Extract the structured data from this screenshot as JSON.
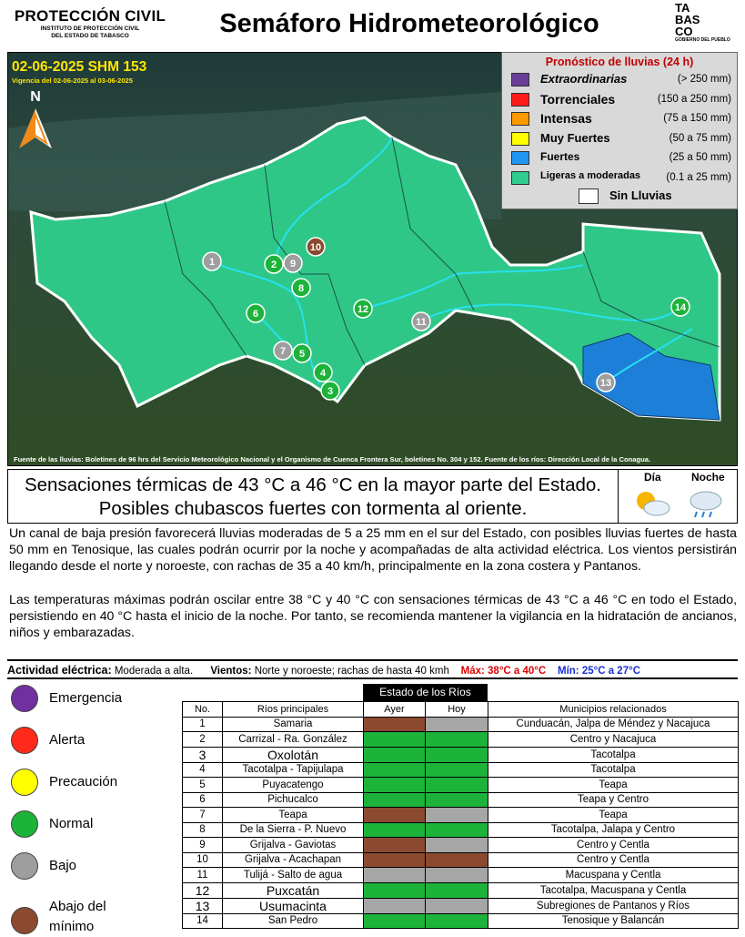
{
  "header": {
    "org_title": "PROTECCIÓN CIVIL",
    "org_sub1": "INSTITUTO DE PROTECCIÓN CIVIL",
    "org_sub2": "DEL ESTADO DE TABASCO",
    "title": "Semáforo Hidrometeorológico",
    "logo": [
      "TA",
      "BAS",
      "CO",
      "GOBIERNO DEL PUEBLO"
    ]
  },
  "map": {
    "bulletin": "02-06-2025 SHM 153",
    "validity": "Vigencia del 02-06-2025 al 03-06-2025",
    "north": "N",
    "source": "Fuente de las lluvias: Boletines de 96 hrs del Servicio Meteorológico Nacional y el Organismo de Cuenca Frontera Sur, boletines No. 304 y 152. Fuente de los ríos: Dirección Local de la Conagua.",
    "markers": [
      {
        "label": "1",
        "color": "#9e9e9e"
      },
      {
        "label": "2",
        "color": "#1db33a"
      },
      {
        "label": "3",
        "color": "#1db33a"
      },
      {
        "label": "4",
        "color": "#1db33a"
      },
      {
        "label": "5",
        "color": "#1db33a"
      },
      {
        "label": "6",
        "color": "#1db33a"
      },
      {
        "label": "7",
        "color": "#9e9e9e"
      },
      {
        "label": "8",
        "color": "#1db33a"
      },
      {
        "label": "9",
        "color": "#9e9e9e"
      },
      {
        "label": "10",
        "color": "#8b4a2f"
      },
      {
        "label": "11",
        "color": "#9e9e9e"
      },
      {
        "label": "12",
        "color": "#1db33a"
      },
      {
        "label": "13",
        "color": "#9e9e9e"
      },
      {
        "label": "14",
        "color": "#1db33a"
      }
    ]
  },
  "legend": {
    "title": "Pronóstico de lluvias (24 h)",
    "items": [
      {
        "name": "Extraordinarias",
        "range": "(> 250 mm)",
        "color": "#6a3d9a"
      },
      {
        "name": "Torrenciales",
        "range": "(150 a 250 mm)",
        "color": "#ff1a1a"
      },
      {
        "name": "Intensas",
        "range": "(75 a 150 mm)",
        "color": "#ff9900"
      },
      {
        "name": "Muy Fuertes",
        "range": "(50 a 75 mm)",
        "color": "#ffff00"
      },
      {
        "name": "Fuertes",
        "range": "(25 a 50 mm)",
        "color": "#2196f3"
      },
      {
        "name": "Ligeras a moderadas",
        "range": "(0.1 a 25 mm)",
        "color": "#2ecc8f"
      }
    ],
    "none": {
      "name": "Sin Lluvias",
      "color": "#ffffff"
    }
  },
  "summary": {
    "headline": "Sensaciones térmicas de 43 °C a 46 °C en la mayor parte del Estado. Posibles chubascos fuertes con tormenta al oriente.",
    "day": "Día",
    "night": "Noche"
  },
  "body": [
    "Un canal de baja presión favorecerá lluvias moderadas de 5 a 25 mm en el sur del Estado, con posibles lluvias fuertes de hasta 50 mm en Tenosique, las cuales podrán ocurrir por la noche y acompañadas de alta actividad eléctrica. Los vientos persistirán llegando desde el norte y noroeste, con rachas de 35 a 40 km/h, principalmente en la zona costera y Pantanos.",
    "Las temperaturas máximas podrán oscilar entre 38 °C y 40 °C con sensaciones térmicas de 43 °C a 46 °C en todo el Estado, persistiendo en 40 °C hasta el inicio de la noche. Por tanto, se recomienda mantener la vigilancia en la hidratación de ancianos, niños y embarazadas."
  ],
  "conditions": {
    "electric_label": "Actividad eléctrica:",
    "electric": "Moderada a alta.",
    "wind_label": "Vientos:",
    "wind": "Norte y noroeste; rachas de hasta 40 kmh",
    "max": "Máx: 38°C a 40°C",
    "min": "Mín: 25°C a 27°C"
  },
  "status_legend": [
    {
      "name": "Emergencia",
      "color": "#7030a0"
    },
    {
      "name": "Alerta",
      "color": "#ff2a1a"
    },
    {
      "name": "Precaución",
      "color": "#ffff00"
    },
    {
      "name": "Normal",
      "color": "#1db33a"
    },
    {
      "name": "Bajo",
      "color": "#9e9e9e"
    },
    {
      "name": "Abajo del mínimo",
      "color": "#8b4a2f"
    }
  ],
  "rivers": {
    "title": "Estado de los Ríos",
    "headers": [
      "No.",
      "Ríos principales",
      "Ayer",
      "Hoy",
      "Municipios relacionados"
    ],
    "rows": [
      {
        "no": "1",
        "river": "Samaria",
        "yesterday": "#8b4a2f",
        "today": "#a6a6a6",
        "municipalities": "Cunduacán, Jalpa de Méndez y Nacajuca"
      },
      {
        "no": "2",
        "river": "Carrizal - Ra. González",
        "yesterday": "#1db33a",
        "today": "#1db33a",
        "municipalities": "Centro y Nacajuca"
      },
      {
        "no": "3",
        "river": "Oxolotán",
        "yesterday": "#1db33a",
        "today": "#1db33a",
        "municipalities": "Tacotalpa"
      },
      {
        "no": "4",
        "river": "Tacotalpa - Tapijulapa",
        "yesterday": "#1db33a",
        "today": "#1db33a",
        "municipalities": "Tacotalpa"
      },
      {
        "no": "5",
        "river": "Puyacatengo",
        "yesterday": "#1db33a",
        "today": "#1db33a",
        "municipalities": "Teapa"
      },
      {
        "no": "6",
        "river": "Pichucalco",
        "yesterday": "#1db33a",
        "today": "#1db33a",
        "municipalities": "Teapa y Centro"
      },
      {
        "no": "7",
        "river": "Teapa",
        "yesterday": "#8b4a2f",
        "today": "#a6a6a6",
        "municipalities": "Teapa"
      },
      {
        "no": "8",
        "river": "De la Sierra - P. Nuevo",
        "yesterday": "#1db33a",
        "today": "#1db33a",
        "municipalities": "Tacotalpa, Jalapa y Centro"
      },
      {
        "no": "9",
        "river": "Grijalva - Gaviotas",
        "yesterday": "#8b4a2f",
        "today": "#a6a6a6",
        "municipalities": "Centro y Centla"
      },
      {
        "no": "10",
        "river": "Grijalva - Acachapan",
        "yesterday": "#8b4a2f",
        "today": "#8b4a2f",
        "municipalities": "Centro y Centla"
      },
      {
        "no": "11",
        "river": "Tulijá - Salto de agua",
        "yesterday": "#a6a6a6",
        "today": "#a6a6a6",
        "municipalities": "Macuspana y Centla"
      },
      {
        "no": "12",
        "river": "Puxcatán",
        "yesterday": "#1db33a",
        "today": "#1db33a",
        "municipalities": "Tacotalpa, Macuspana y Centla"
      },
      {
        "no": "13",
        "river": "Usumacinta",
        "yesterday": "#a6a6a6",
        "today": "#a6a6a6",
        "municipalities": "Subregiones de Pantanos y Ríos"
      },
      {
        "no": "14",
        "river": "San Pedro",
        "yesterday": "#1db33a",
        "today": "#1db33a",
        "municipalities": "Tenosique y Balancán"
      }
    ]
  }
}
